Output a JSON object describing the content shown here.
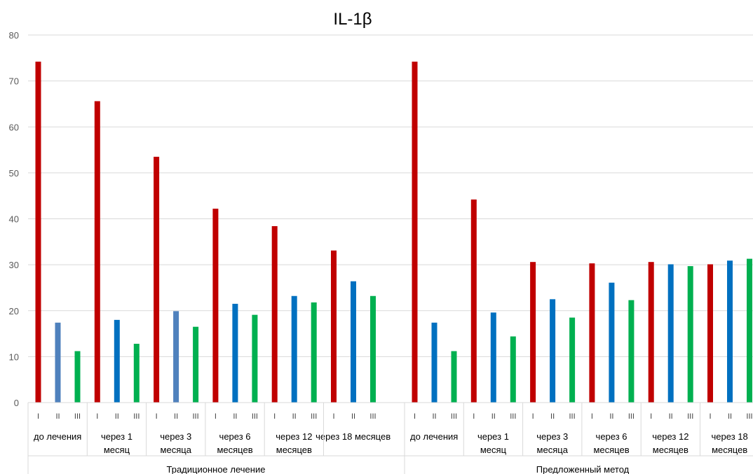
{
  "chart_data": {
    "type": "bar",
    "title": "IL-1β",
    "ylim": [
      0,
      80
    ],
    "yticks": [
      0,
      10,
      20,
      30,
      40,
      50,
      60,
      70,
      80
    ],
    "grid": true,
    "subcategories": [
      "I",
      "II",
      "III"
    ],
    "outer_groups": [
      {
        "label": "Традиционное лечение",
        "periods": [
          {
            "label": [
              "до лечения"
            ],
            "values": [
              74.2,
              17.4,
              11.2
            ],
            "colors": [
              "#c00000",
              "#4f81bd",
              "#00b050"
            ]
          },
          {
            "label": [
              "через 1",
              "месяц"
            ],
            "values": [
              65.6,
              18.0,
              12.8
            ],
            "colors": [
              "#c00000",
              "#0070c0",
              "#00b050"
            ]
          },
          {
            "label": [
              "через 3",
              "месяца"
            ],
            "values": [
              53.5,
              19.9,
              16.5
            ],
            "colors": [
              "#c00000",
              "#4f81bd",
              "#00b050"
            ]
          },
          {
            "label": [
              "через 6",
              "месяцев"
            ],
            "values": [
              42.2,
              21.5,
              19.1
            ],
            "colors": [
              "#c00000",
              "#0070c0",
              "#00b050"
            ]
          },
          {
            "label": [
              "через 12",
              "месяцев"
            ],
            "values": [
              38.4,
              23.2,
              21.8
            ],
            "colors": [
              "#c00000",
              "#0070c0",
              "#00b050"
            ]
          },
          {
            "label": [
              "через 18 месяцев"
            ],
            "values": [
              33.1,
              26.4,
              23.2
            ],
            "colors": [
              "#c00000",
              "#0070c0",
              "#00b050"
            ]
          }
        ]
      },
      {
        "label": "Предложенный метод",
        "periods": [
          {
            "label": [
              "до лечения"
            ],
            "values": [
              74.2,
              17.4,
              11.2
            ],
            "colors": [
              "#c00000",
              "#0070c0",
              "#00b050"
            ]
          },
          {
            "label": [
              "через 1",
              "месяц"
            ],
            "values": [
              44.2,
              19.6,
              14.4
            ],
            "colors": [
              "#c00000",
              "#0070c0",
              "#00b050"
            ]
          },
          {
            "label": [
              "через 3",
              "месяца"
            ],
            "values": [
              30.6,
              22.5,
              18.5
            ],
            "colors": [
              "#c00000",
              "#0070c0",
              "#00b050"
            ]
          },
          {
            "label": [
              "через 6",
              "месяцев"
            ],
            "values": [
              30.3,
              26.1,
              22.3
            ],
            "colors": [
              "#c00000",
              "#0070c0",
              "#00b050"
            ]
          },
          {
            "label": [
              "через 12",
              "месяцев"
            ],
            "values": [
              30.6,
              30.1,
              29.7
            ],
            "colors": [
              "#c00000",
              "#0070c0",
              "#00b050"
            ]
          },
          {
            "label": [
              "через 18",
              "месяцев"
            ],
            "values": [
              30.1,
              30.9,
              31.3
            ],
            "colors": [
              "#c00000",
              "#0070c0",
              "#00b050"
            ]
          }
        ]
      }
    ]
  }
}
